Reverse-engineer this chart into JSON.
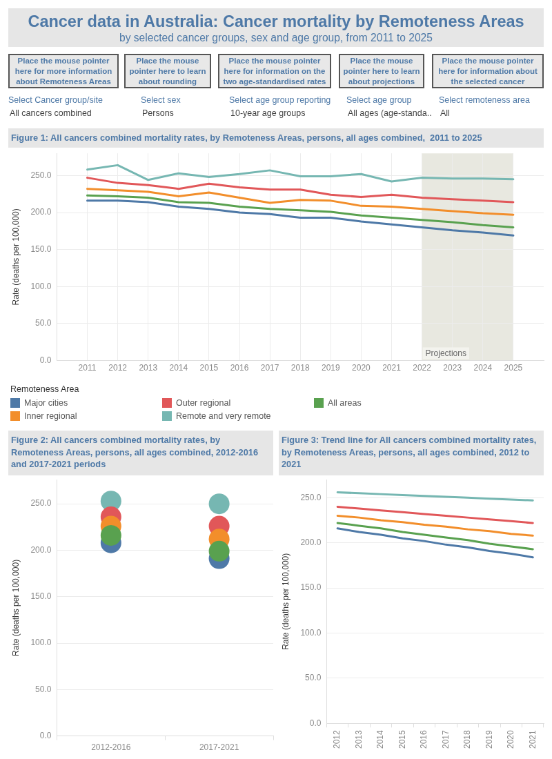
{
  "chart_data": [
    {
      "type": "other",
      "title": "Cancer data in Australia: Cancer mortality by Remoteness Areas",
      "subtitle": "by selected cancer groups, sex and age group, from 2011 to 2025",
      "annotations": [
        "Place the mouse pointer here for more information about Remoteness Areas",
        "Place the mouse pointer here to learn about rounding",
        "Place the mouse pointer here for information on the two age-standardised rates",
        "Place the mouse pointer here to learn about projections",
        "Place the mouse pointer here for information about the selected cancer",
        "Select Cancer group/site",
        "Select sex",
        "Select age group reporting",
        "Select age group",
        "Select remoteness area",
        "All cancers combined",
        "Persons",
        "10-year age groups",
        "All ages (age-standa..",
        "All"
      ]
    },
    {
      "type": "line",
      "title": "Figure 1: All cancers combined mortality rates, by Remoteness Areas, persons, all ages combined,  2011 to 2025",
      "ylabel": "Rate (deaths per 100,000)",
      "x": [
        2011,
        2012,
        2013,
        2014,
        2015,
        2016,
        2017,
        2018,
        2019,
        2020,
        2021,
        2022,
        2023,
        2024,
        2025
      ],
      "xlim": [
        2010,
        2026
      ],
      "xticks": [
        2011,
        2012,
        2013,
        2014,
        2015,
        2016,
        2017,
        2018,
        2019,
        2020,
        2021,
        2022,
        2023,
        2024,
        2025
      ],
      "ylim": [
        0,
        280
      ],
      "yticks": [
        {
          "value": 0,
          "label": "0.0"
        },
        {
          "value": 50,
          "label": "50.0"
        },
        {
          "value": 100,
          "label": "100.0"
        },
        {
          "value": 150,
          "label": "150.0"
        },
        {
          "value": 200,
          "label": "200.0"
        },
        {
          "value": 250,
          "label": "250.0"
        }
      ],
      "grid": true,
      "legend": "bottom",
      "legend_title": "Remoteness Area",
      "line_style": "solid",
      "bands": [
        {
          "axis": "x",
          "from": 2022,
          "to": 2025,
          "label": "Projections",
          "color": "#e8e8e0"
        }
      ],
      "series": [
        {
          "name": "Major cities",
          "color": "#4e79a7",
          "values": [
            216,
            216,
            214,
            208,
            205,
            200,
            198,
            193,
            193,
            188,
            184,
            180,
            176,
            173,
            169
          ]
        },
        {
          "name": "Inner regional",
          "color": "#f28e2b",
          "values": [
            232,
            230,
            228,
            222,
            227,
            220,
            213,
            217,
            216,
            209,
            208,
            205,
            202,
            199,
            197
          ]
        },
        {
          "name": "Outer regional",
          "color": "#e15759",
          "values": [
            247,
            240,
            237,
            232,
            239,
            234,
            231,
            231,
            224,
            221,
            224,
            220,
            218,
            216,
            214
          ]
        },
        {
          "name": "Remote and very remote",
          "color": "#76b7b2",
          "values": [
            258,
            264,
            244,
            253,
            248,
            252,
            257,
            249,
            249,
            252,
            242,
            247,
            246,
            246,
            245
          ]
        },
        {
          "name": "All areas",
          "color": "#59a14f",
          "values": [
            223,
            222,
            220,
            214,
            213,
            208,
            205,
            203,
            201,
            196,
            193,
            190,
            187,
            183,
            180
          ]
        }
      ]
    },
    {
      "type": "scatter",
      "title": "Figure 2: All cancers combined mortality rates, by Remoteness Areas, persons, all ages combined, 2012-2016 and 2017-2021 periods",
      "ylabel": "Rate (deaths per 100,000)",
      "categories": [
        "2012-2016",
        "2017-2021"
      ],
      "ylim": [
        0,
        276
      ],
      "yticks": [
        {
          "value": 0,
          "label": "0.0"
        },
        {
          "value": 50,
          "label": "50.0"
        },
        {
          "value": 100,
          "label": "100.0"
        },
        {
          "value": 150,
          "label": "150.0"
        },
        {
          "value": 200,
          "label": "200.0"
        },
        {
          "value": 250,
          "label": "250.0"
        }
      ],
      "grid": "y",
      "marker": "circle",
      "series": [
        {
          "color": "#4e79a7",
          "values": [
            208,
            191
          ]
        },
        {
          "color": "#76b7b2",
          "values": [
            253,
            250
          ]
        },
        {
          "color": "#e15759",
          "values": [
            236,
            226
          ]
        },
        {
          "color": "#f28e2b",
          "values": [
            226,
            212
          ]
        },
        {
          "color": "#59a14f",
          "values": [
            216,
            199
          ]
        }
      ]
    },
    {
      "type": "line",
      "title": "Figure 3: Trend line for All cancers combined mortality rates, by Remoteness Areas, persons, all ages combined, 2012 to 2021",
      "ylabel": "Rate (deaths per 100,000)",
      "categories": [
        "2012",
        "2013",
        "2014",
        "2015",
        "2016",
        "2017",
        "2018",
        "2019",
        "2020",
        "2021"
      ],
      "ylim": [
        0,
        270
      ],
      "yticks": [
        {
          "value": 0,
          "label": "0.0"
        },
        {
          "value": 50,
          "label": "50.0"
        },
        {
          "value": 100,
          "label": "100.0"
        },
        {
          "value": 150,
          "label": "150.0"
        },
        {
          "value": 200,
          "label": "200.0"
        },
        {
          "value": 250,
          "label": "250.0"
        }
      ],
      "grid": "y",
      "line_style": "solid",
      "series": [
        {
          "color": "#4e79a7",
          "values": [
            216,
            212,
            209,
            205,
            202,
            198,
            195,
            191,
            188,
            184
          ]
        },
        {
          "color": "#f28e2b",
          "values": [
            230,
            228,
            225,
            223,
            220,
            218,
            215,
            213,
            210,
            208
          ]
        },
        {
          "color": "#e15759",
          "values": [
            240,
            238,
            236,
            234,
            232,
            230,
            228,
            226,
            224,
            222
          ]
        },
        {
          "color": "#76b7b2",
          "values": [
            256,
            255,
            254,
            253,
            252,
            251,
            250,
            249,
            248,
            247
          ]
        },
        {
          "color": "#59a14f",
          "values": [
            222,
            219,
            216,
            212,
            209,
            206,
            203,
            199,
            196,
            193
          ]
        }
      ]
    }
  ]
}
